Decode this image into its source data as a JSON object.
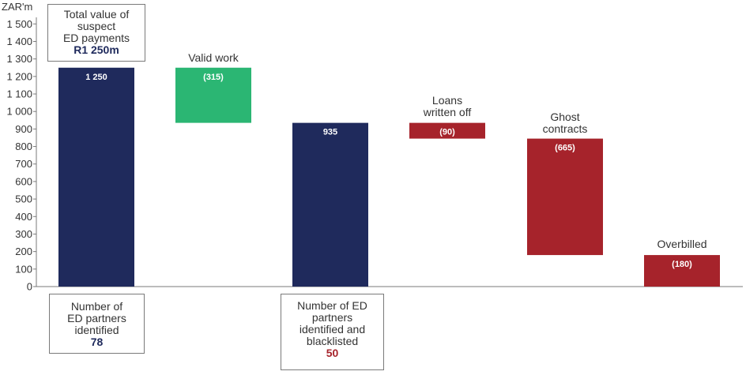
{
  "chart_data": {
    "type": "bar",
    "subtype": "waterfall",
    "ylabel": "ZAR'm",
    "ylim": [
      0,
      1600
    ],
    "yticks": [
      0,
      100,
      200,
      300,
      400,
      500,
      600,
      700,
      800,
      900,
      1000,
      1100,
      1200,
      1300,
      1400,
      1500
    ],
    "ytick_labels": [
      "0",
      "100",
      "200",
      "300",
      "400",
      "500",
      "600",
      "700",
      "800",
      "900",
      "1 000",
      "1 100",
      "1 200",
      "1 300",
      "1 400",
      "1 500"
    ],
    "bars": [
      {
        "kind": "total",
        "start": 0,
        "end": 1250,
        "value_label": "1 250",
        "color": "#1f2a5c",
        "category": ""
      },
      {
        "kind": "decrease",
        "start": 935,
        "end": 1250,
        "value_label": "(315)",
        "color": "#2bb673",
        "category": "Valid work"
      },
      {
        "kind": "total",
        "start": 0,
        "end": 935,
        "value_label": "935",
        "color": "#1f2a5c",
        "category": ""
      },
      {
        "kind": "decrease",
        "start": 845,
        "end": 935,
        "value_label": "(90)",
        "color": "#a6232b",
        "category": "Loans written off"
      },
      {
        "kind": "decrease",
        "start": 180,
        "end": 845,
        "value_label": "(665)",
        "color": "#a6232b",
        "category": "Ghost contracts"
      },
      {
        "kind": "decrease",
        "start": 0,
        "end": 180,
        "value_label": "(180)",
        "color": "#a6232b",
        "category": "Overbilled"
      }
    ],
    "grid": false,
    "legend": "none"
  },
  "labels": {
    "valid": "Valid work",
    "loans_1": "Loans",
    "loans_2": "written off",
    "ghost_1": "Ghost",
    "ghost_2": "contracts",
    "overbilled": "Overbilled"
  },
  "callouts": {
    "total": {
      "line1": "Total value of",
      "line2": "suspect",
      "line3": "ED payments",
      "value": "R1 250m"
    },
    "partners": {
      "line1": "Number of",
      "line2": "ED partners",
      "line3": "identified",
      "value": "78",
      "value_color": "#1f2a5c"
    },
    "blacklisted": {
      "line1": "Number of ED",
      "line2": "partners",
      "line3": "identified and",
      "line4": "blacklisted",
      "value": "50",
      "value_color": "#a6232b"
    }
  },
  "colors": {
    "navy": "#1f2a5c",
    "green": "#2bb673",
    "red": "#a6232b",
    "axis": "#7a7a7a"
  }
}
